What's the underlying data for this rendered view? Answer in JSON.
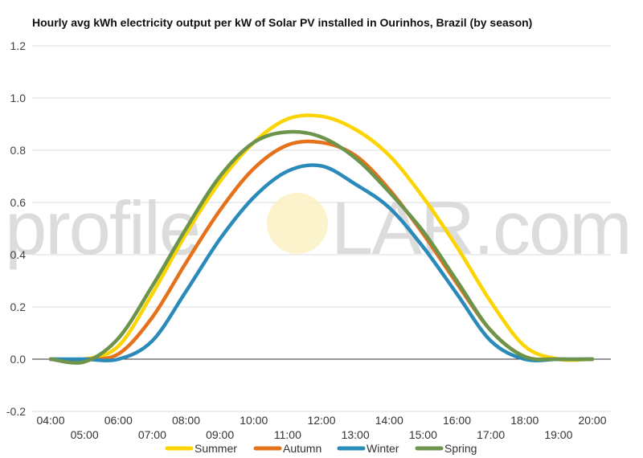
{
  "chart_data": {
    "type": "line",
    "title": "Hourly avg kWh electricity output per kW of Solar PV installed in Ourinhos, Brazil (by season)",
    "xlabel": "",
    "ylabel": "",
    "ylim": [
      -0.2,
      1.2
    ],
    "yticks": [
      "-0.2",
      "0.0",
      "0.2",
      "0.4",
      "0.6",
      "0.8",
      "1.0",
      "1.2"
    ],
    "grid": true,
    "legend_position": "bottom",
    "x": [
      "04:00",
      "05:00",
      "06:00",
      "07:00",
      "08:00",
      "09:00",
      "10:00",
      "11:00",
      "12:00",
      "13:00",
      "14:00",
      "15:00",
      "16:00",
      "17:00",
      "18:00",
      "19:00",
      "20:00"
    ],
    "series": [
      {
        "name": "Summer",
        "color": "#fcd402",
        "values": [
          0.0,
          0.0,
          0.05,
          0.25,
          0.48,
          0.68,
          0.83,
          0.92,
          0.93,
          0.88,
          0.78,
          0.62,
          0.43,
          0.22,
          0.05,
          0.0,
          0.0
        ]
      },
      {
        "name": "Autumn",
        "color": "#e5711b",
        "values": [
          0.0,
          0.0,
          0.02,
          0.16,
          0.37,
          0.57,
          0.73,
          0.82,
          0.83,
          0.78,
          0.65,
          0.48,
          0.29,
          0.11,
          0.01,
          0.0,
          0.0
        ]
      },
      {
        "name": "Winter",
        "color": "#2a8ab9",
        "values": [
          0.0,
          0.0,
          0.0,
          0.07,
          0.26,
          0.46,
          0.62,
          0.72,
          0.74,
          0.67,
          0.58,
          0.43,
          0.25,
          0.07,
          0.0,
          0.0,
          0.0
        ]
      },
      {
        "name": "Spring",
        "color": "#6c944b",
        "values": [
          0.0,
          -0.01,
          0.08,
          0.28,
          0.5,
          0.7,
          0.83,
          0.87,
          0.85,
          0.77,
          0.64,
          0.49,
          0.3,
          0.11,
          0.01,
          0.0,
          0.0
        ]
      }
    ]
  },
  "watermark": {
    "left": "profile",
    "right": "LAR.com"
  }
}
